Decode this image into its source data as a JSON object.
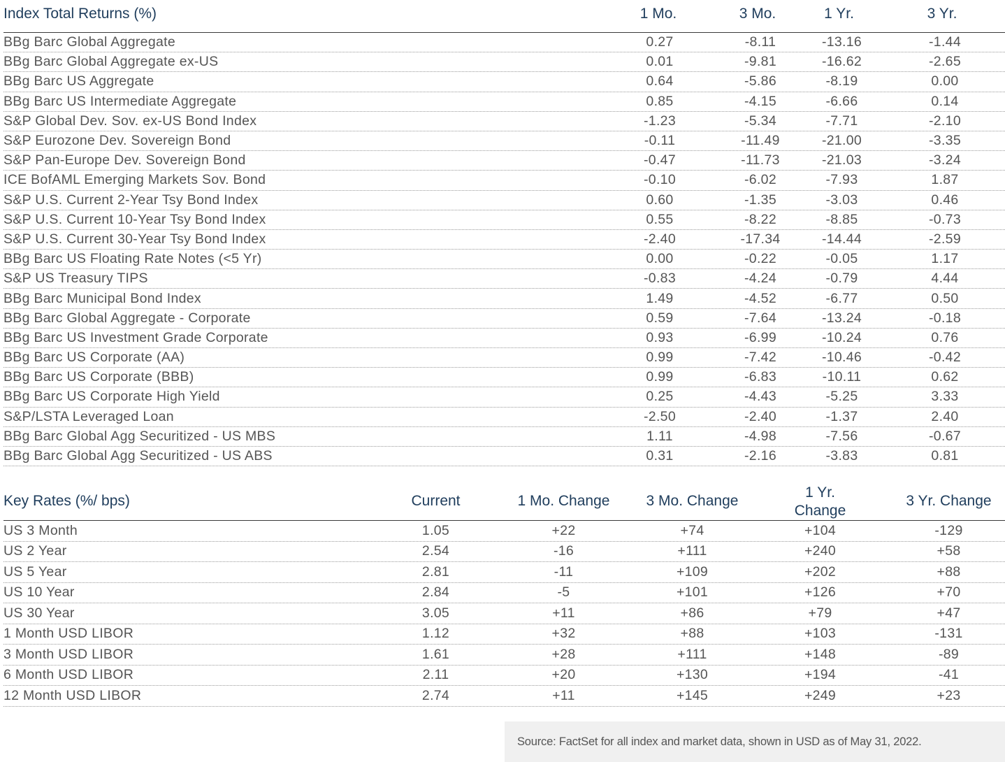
{
  "returns": {
    "header": {
      "title": "Index Total Returns (%)",
      "col1": "1 Mo.",
      "col2": "3 Mo.",
      "col3": "1 Yr.",
      "col4": "3 Yr."
    },
    "rows": [
      [
        "BBg Barc Global Aggregate",
        "0.27",
        "-8.11",
        "-13.16",
        "-1.44"
      ],
      [
        "BBg Barc Global Aggregate ex-US",
        "0.01",
        "-9.81",
        "-16.62",
        "-2.65"
      ],
      [
        "BBg Barc US Aggregate",
        "0.64",
        "-5.86",
        "-8.19",
        "0.00"
      ],
      [
        "BBg Barc US Intermediate Aggregate",
        "0.85",
        "-4.15",
        "-6.66",
        "0.14"
      ],
      [
        "S&P Global Dev. Sov. ex-US Bond Index",
        "-1.23",
        "-5.34",
        "-7.71",
        "-2.10"
      ],
      [
        "S&P Eurozone Dev. Sovereign Bond",
        "-0.11",
        "-11.49",
        "-21.00",
        "-3.35"
      ],
      [
        "S&P Pan-Europe Dev. Sovereign Bond",
        "-0.47",
        "-11.73",
        "-21.03",
        "-3.24"
      ],
      [
        "ICE BofAML Emerging Markets Sov. Bond",
        "-0.10",
        "-6.02",
        "-7.93",
        "1.87"
      ],
      [
        "S&P U.S. Current 2-Year Tsy Bond Index",
        "0.60",
        "-1.35",
        "-3.03",
        "0.46"
      ],
      [
        "S&P U.S. Current 10-Year Tsy Bond Index",
        "0.55",
        "-8.22",
        "-8.85",
        "-0.73"
      ],
      [
        "S&P U.S. Current 30-Year Tsy Bond Index",
        "-2.40",
        "-17.34",
        "-14.44",
        "-2.59"
      ],
      [
        "BBg Barc US Floating Rate Notes (<5 Yr)",
        "0.00",
        "-0.22",
        "-0.05",
        "1.17"
      ],
      [
        "S&P US Treasury TIPS",
        "-0.83",
        "-4.24",
        "-0.79",
        "4.44"
      ],
      [
        "BBg Barc Municipal Bond Index",
        "1.49",
        "-4.52",
        "-6.77",
        "0.50"
      ],
      [
        "BBg Barc Global Aggregate - Corporate",
        "0.59",
        "-7.64",
        "-13.24",
        "-0.18"
      ],
      [
        "BBg Barc US Investment Grade Corporate",
        "0.93",
        "-6.99",
        "-10.24",
        "0.76"
      ],
      [
        "BBg Barc US Corporate (AA)",
        "0.99",
        "-7.42",
        "-10.46",
        "-0.42"
      ],
      [
        "BBg Barc US Corporate (BBB)",
        "0.99",
        "-6.83",
        "-10.11",
        "0.62"
      ],
      [
        "BBg Barc US Corporate High Yield",
        "0.25",
        "-4.43",
        "-5.25",
        "3.33"
      ],
      [
        "S&P/LSTA Leveraged Loan",
        "-2.50",
        "-2.40",
        "-1.37",
        "2.40"
      ],
      [
        "BBg Barc Global Agg Securitized - US MBS",
        "1.11",
        "-4.98",
        "-7.56",
        "-0.67"
      ],
      [
        "BBg Barc Global Agg Securitized - US ABS",
        "0.31",
        "-2.16",
        "-3.83",
        "0.81"
      ]
    ]
  },
  "rates": {
    "header": {
      "title": "Key Rates (%/ bps)",
      "col1": "Current",
      "col2": "1 Mo. Change",
      "col3": "3 Mo. Change",
      "col4_line1": "1 Yr.",
      "col4_line2": "Change",
      "col5": "3 Yr. Change"
    },
    "rows": [
      [
        "US 3 Month",
        "1.05",
        "+22",
        "+74",
        "+104",
        "-129"
      ],
      [
        "US 2 Year",
        "2.54",
        "-16",
        "+111",
        "+240",
        "+58"
      ],
      [
        "US 5 Year",
        "2.81",
        "-11",
        "+109",
        "+202",
        "+88"
      ],
      [
        "US 10 Year",
        "2.84",
        "-5",
        "+101",
        "+126",
        "+70"
      ],
      [
        "US 30 Year",
        "3.05",
        "+11",
        "+86",
        "+79",
        "+47"
      ],
      [
        "1 Month USD LIBOR",
        "1.12",
        "+32",
        "+88",
        "+103",
        "-131"
      ],
      [
        "3 Month USD LIBOR",
        "1.61",
        "+28",
        "+111",
        "+148",
        "-89"
      ],
      [
        "6 Month USD LIBOR",
        "2.11",
        "+20",
        "+130",
        "+194",
        "-41"
      ],
      [
        "12 Month USD LIBOR",
        "2.74",
        "+11",
        "+145",
        "+249",
        "+23"
      ]
    ]
  },
  "source": "Source: FactSet for all index and market data, shown in USD as of May 31, 2022.",
  "colors": {
    "header_text": "#1f3d5c",
    "body_text": "#555555",
    "source_bg": "#f0f0f0"
  }
}
